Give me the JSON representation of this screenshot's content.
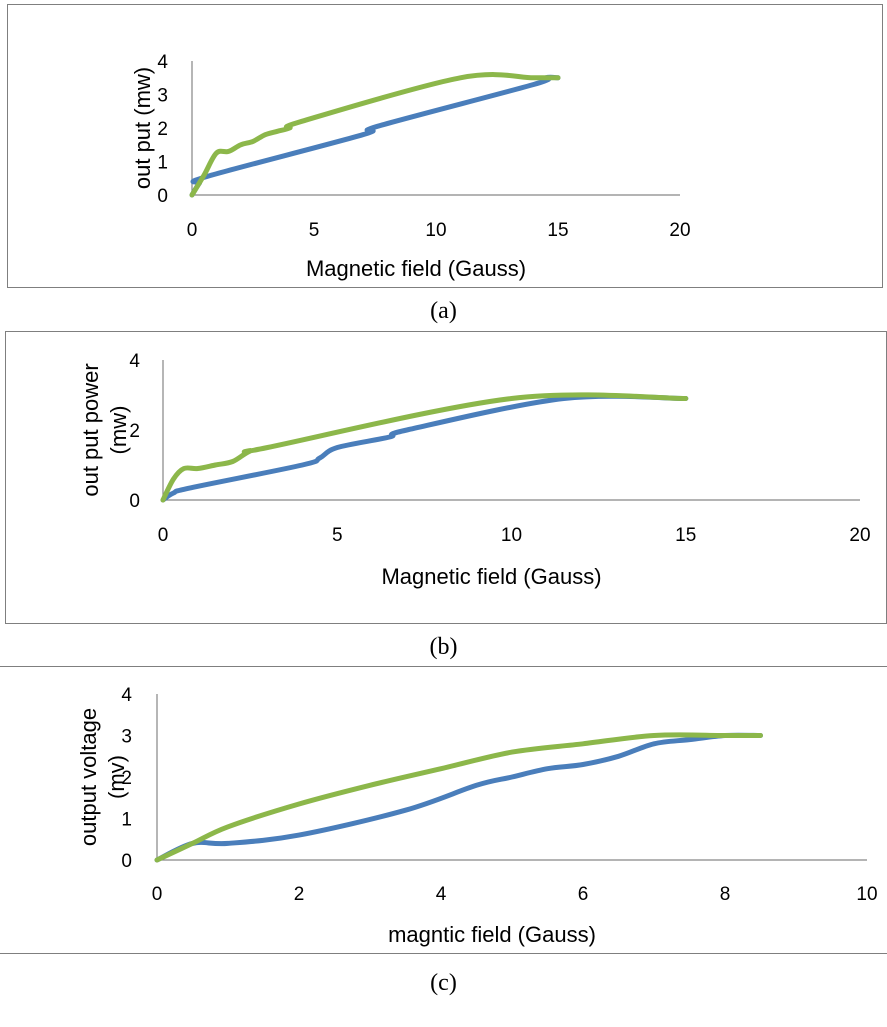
{
  "chart_data": [
    {
      "id": "a",
      "type": "line",
      "caption": "(a)",
      "xlabel": "Magnetic field (Gauss)",
      "ylabel": [
        "out put (mw)"
      ],
      "xlim": [
        0,
        20
      ],
      "ylim": [
        0,
        4
      ],
      "xticks": [
        0,
        5,
        10,
        15,
        20
      ],
      "yticks": [
        0,
        1,
        2,
        3,
        4
      ],
      "grid": false,
      "legend": "none",
      "series": [
        {
          "color": "#4a7ebb",
          "x": [
            0,
            0.3,
            0.6,
            7,
            7.6,
            14,
            14.5,
            15
          ],
          "y": [
            0,
            0.35,
            0.55,
            1.8,
            2.05,
            3.3,
            3.5,
            3.5
          ]
        },
        {
          "color": "#8cb74a",
          "x": [
            0,
            0.5,
            1.0,
            1.5,
            2.0,
            2.5,
            3.0,
            3.5,
            4.0,
            4.5,
            11,
            14,
            15
          ],
          "y": [
            0,
            0.6,
            1.25,
            1.3,
            1.5,
            1.6,
            1.8,
            1.9,
            2.0,
            2.2,
            3.5,
            3.5,
            3.5
          ]
        }
      ]
    },
    {
      "id": "b",
      "type": "line",
      "caption": "(b)",
      "xlabel": "Magnetic field (Gauss)",
      "ylabel": [
        "out put power",
        "(mw)"
      ],
      "xlim": [
        0,
        20
      ],
      "ylim": [
        0,
        4
      ],
      "xticks": [
        0,
        5,
        10,
        15,
        20
      ],
      "yticks": [
        0,
        2,
        4
      ],
      "grid": false,
      "legend": "none",
      "series": [
        {
          "color": "#4a7ebb",
          "x": [
            0,
            0.3,
            0.8,
            4,
            4.5,
            5,
            6.5,
            7,
            11.5,
            15
          ],
          "y": [
            0,
            0.2,
            0.35,
            1.0,
            1.2,
            1.5,
            1.8,
            2.0,
            2.9,
            2.9
          ]
        },
        {
          "color": "#8cb74a",
          "x": [
            0,
            0.3,
            0.6,
            1,
            1.5,
            2,
            2.5,
            3,
            10,
            15
          ],
          "y": [
            0,
            0.6,
            0.9,
            0.9,
            1.0,
            1.1,
            1.4,
            1.5,
            2.9,
            2.9
          ]
        }
      ]
    },
    {
      "id": "c",
      "type": "line",
      "caption": "(c)",
      "xlabel": "magntic field (Gauss)",
      "ylabel": [
        "output voltage",
        "(mv)"
      ],
      "xlim": [
        0,
        10
      ],
      "ylim": [
        0,
        4
      ],
      "xticks": [
        0,
        2,
        4,
        6,
        8,
        10
      ],
      "yticks": [
        0,
        1,
        2,
        3,
        4
      ],
      "grid": false,
      "legend": "none",
      "series": [
        {
          "color": "#4a7ebb",
          "x": [
            0,
            0.5,
            1,
            2,
            3.5,
            4.5,
            5,
            5.5,
            6,
            6.5,
            7,
            7.5,
            8,
            8.5
          ],
          "y": [
            0,
            0.4,
            0.4,
            0.6,
            1.2,
            1.8,
            2.0,
            2.2,
            2.3,
            2.5,
            2.8,
            2.9,
            3.0,
            3.0
          ]
        },
        {
          "color": "#8cb74a",
          "x": [
            0,
            0.5,
            1,
            2,
            3,
            4,
            5,
            6,
            7,
            8,
            8.5
          ],
          "y": [
            0,
            0.4,
            0.8,
            1.35,
            1.8,
            2.2,
            2.6,
            2.8,
            3.0,
            3.0,
            3.0
          ]
        }
      ]
    }
  ]
}
